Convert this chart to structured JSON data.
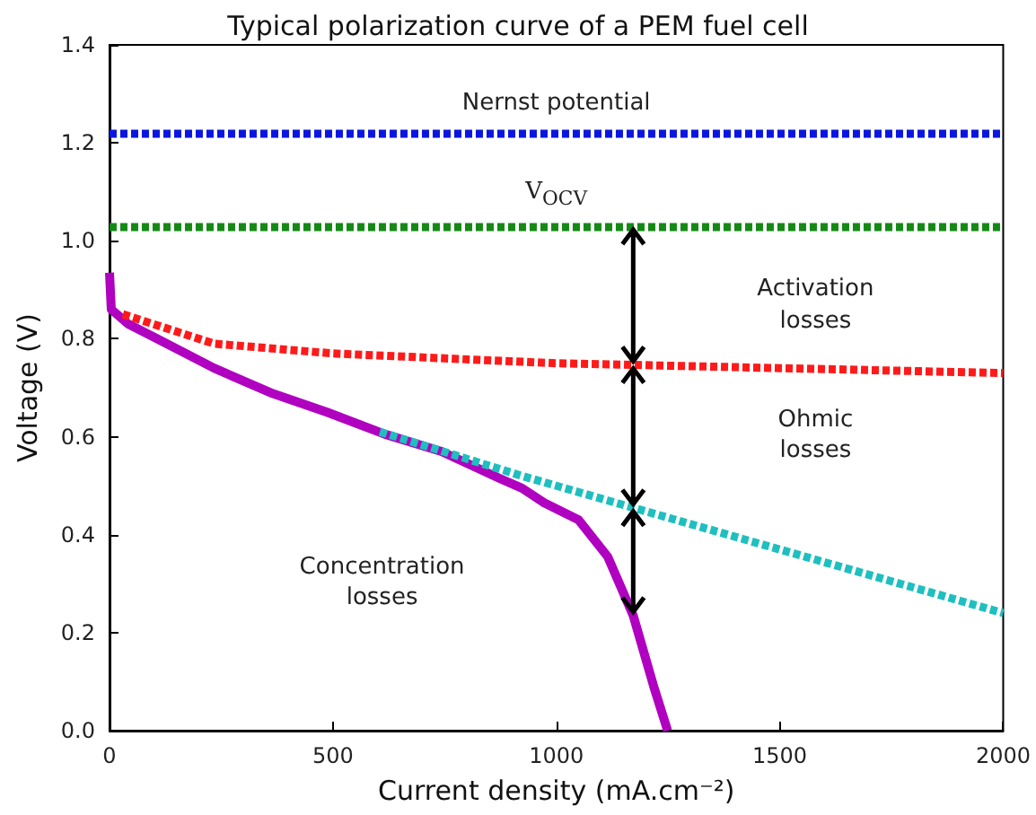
{
  "chart_data": {
    "type": "line",
    "title": "Typical polarization curve of a PEM fuel cell",
    "xlabel": "Current density (mA.cm⁻²)",
    "ylabel": "Voltage (V)",
    "xlim": [
      0,
      2000
    ],
    "xticks": [
      0,
      500,
      1000,
      1500,
      2000
    ],
    "ylim": [
      0,
      1.4
    ],
    "yticks": [
      {
        "value": 0,
        "label": "0.0"
      },
      0.2,
      0.4,
      0.6,
      0.8,
      {
        "value": 1,
        "label": "1.0"
      },
      1.2,
      1.4
    ],
    "grid": false,
    "series": [
      {
        "color": "#ff1a1a",
        "line_style": "dotted",
        "x": [
          30,
          234,
          500,
          1000,
          1506,
          2000
        ],
        "values": [
          0.85,
          0.79,
          0.77,
          0.75,
          0.74,
          0.73
        ]
      },
      {
        "color": "#1fbfbf",
        "line_style": "dotted",
        "x": [
          605,
          923,
          1172,
          2000
        ],
        "values": [
          0.61,
          0.52,
          0.455,
          0.24
        ]
      },
      {
        "color": "#b000c0",
        "line_style": "solid",
        "x": [
          0,
          4,
          42,
          107,
          234,
          360,
          487,
          617,
          743,
          873,
          923,
          973,
          1050,
          1115,
          1172,
          1218,
          1249
        ],
        "values": [
          0.935,
          0.86,
          0.83,
          0.8,
          0.74,
          0.69,
          0.65,
          0.605,
          0.57,
          0.515,
          0.495,
          0.465,
          0.43,
          0.355,
          0.235,
          0.09,
          0
        ]
      }
    ],
    "ref_lines": [
      {
        "axis": "y",
        "value": 1.22,
        "label": "Nernst potential",
        "color": "#0a16e0",
        "line_style": "dotted"
      },
      {
        "axis": "y",
        "value": 1.03,
        "label": "V$_{OCV}$",
        "color": "#148a14",
        "line_style": "dotted"
      }
    ],
    "annotations": [
      "Activation losses",
      "Ohmic losses",
      "Concentration losses"
    ]
  }
}
